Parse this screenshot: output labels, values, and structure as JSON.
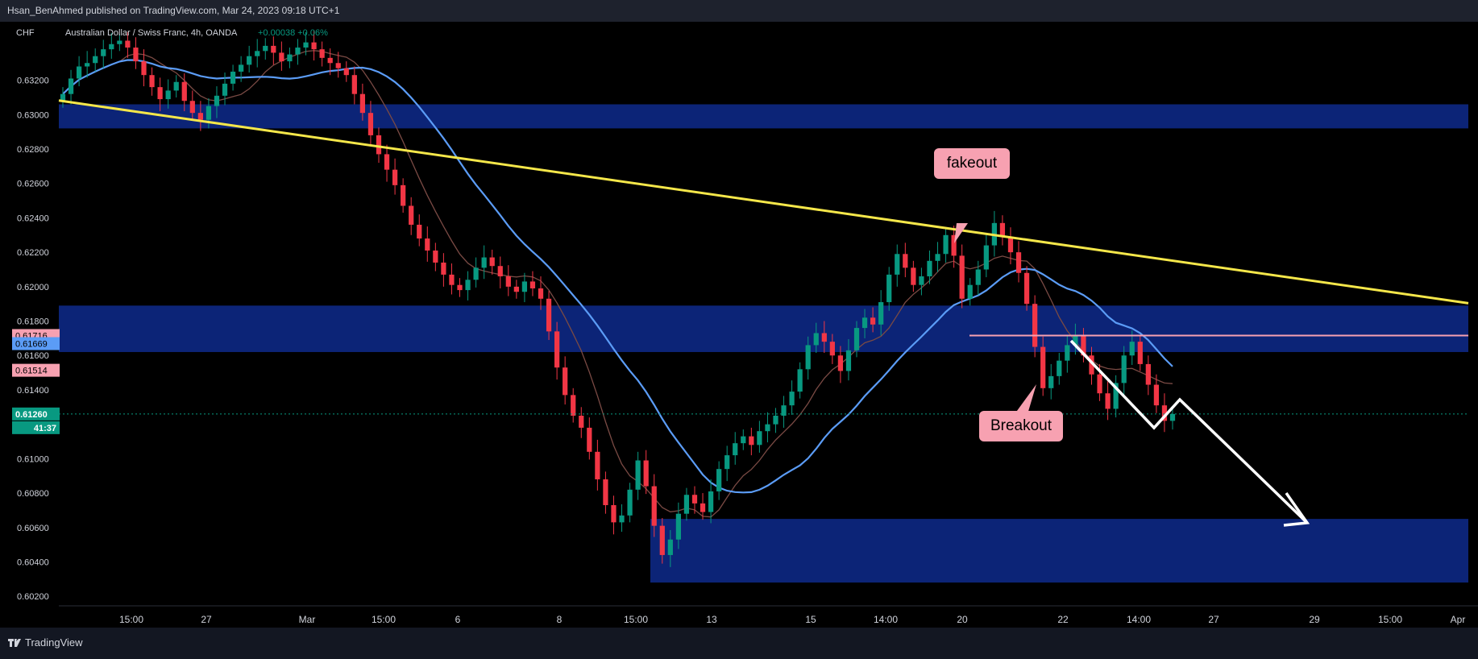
{
  "header": {
    "publish_text": "Hsan_BenAhmed published on TradingView.com, Mar 24, 2023 09:18 UTC+1"
  },
  "footer": {
    "brand": "TradingView"
  },
  "chart_data": {
    "type": "candlestick",
    "currency_label": "CHF",
    "symbol": "Australian Dollar / Swiss Franc, 4h, OANDA",
    "change_text": "+0.00038 +0.06%",
    "ylim": [
      0.6014,
      0.6354
    ],
    "y_ticks": [
      "0.63200",
      "0.63000",
      "0.62800",
      "0.62600",
      "0.62400",
      "0.62200",
      "0.62000",
      "0.61800",
      "0.61600",
      "0.61400",
      "0.61000",
      "0.60800",
      "0.60600",
      "0.60400",
      "0.60200"
    ],
    "x_ticks": [
      "15:00",
      "27",
      "Mar",
      "15:00",
      "6",
      "8",
      "15:00",
      "13",
      "15",
      "14:00",
      "20",
      "22",
      "14:00",
      "27",
      "29",
      "15:00",
      "Apr"
    ],
    "price_labels": [
      {
        "value": "0.61716",
        "color": "#f7a1b1",
        "text_color": "#000000",
        "price": 0.61716
      },
      {
        "value": "0.61669",
        "color": "#5b9cf6",
        "text_color": "#000000",
        "price": 0.61669
      },
      {
        "value": "0.61514",
        "color": "#f7a1b1",
        "text_color": "#000000",
        "price": 0.61514
      },
      {
        "value": "0.61260",
        "color": "#089981",
        "text_color": "#ffffff",
        "price": 0.6126
      },
      {
        "value": "41:37",
        "color": "#089981",
        "text_color": "#ffffff",
        "price": 0.6126
      }
    ],
    "zones": [
      {
        "price_top": 0.6306,
        "price_bottom": 0.6292
      },
      {
        "price_top": 0.6189,
        "price_bottom": 0.6162
      },
      {
        "price_top": 0.6065,
        "price_bottom": 0.6028
      }
    ],
    "closes": [
      0.6312,
      0.6321,
      0.6328,
      0.633,
      0.6334,
      0.6338,
      0.6341,
      0.6343,
      0.6339,
      0.6331,
      0.6323,
      0.6316,
      0.6309,
      0.6314,
      0.6319,
      0.6308,
      0.6301,
      0.6297,
      0.6305,
      0.6311,
      0.6318,
      0.6325,
      0.6329,
      0.6334,
      0.6337,
      0.634,
      0.6336,
      0.6331,
      0.6335,
      0.6339,
      0.6342,
      0.6338,
      0.6333,
      0.633,
      0.6327,
      0.6323,
      0.6312,
      0.6301,
      0.6288,
      0.6277,
      0.6268,
      0.6259,
      0.6247,
      0.6236,
      0.6228,
      0.6221,
      0.6214,
      0.6207,
      0.6201,
      0.6198,
      0.6204,
      0.6211,
      0.6217,
      0.6212,
      0.6206,
      0.62,
      0.6197,
      0.6203,
      0.6199,
      0.6193,
      0.6174,
      0.6153,
      0.6137,
      0.6125,
      0.6118,
      0.6104,
      0.6088,
      0.6073,
      0.6063,
      0.6067,
      0.6082,
      0.6099,
      0.6084,
      0.6061,
      0.6044,
      0.6053,
      0.6068,
      0.6079,
      0.6074,
      0.6069,
      0.6081,
      0.6094,
      0.6102,
      0.6109,
      0.6113,
      0.6108,
      0.6116,
      0.612,
      0.6125,
      0.6131,
      0.6139,
      0.6152,
      0.6166,
      0.6173,
      0.6168,
      0.616,
      0.6151,
      0.6163,
      0.6176,
      0.6182,
      0.6178,
      0.6191,
      0.6207,
      0.6219,
      0.6211,
      0.6201,
      0.6206,
      0.6215,
      0.6219,
      0.623,
      0.6218,
      0.6193,
      0.6201,
      0.621,
      0.6224,
      0.6237,
      0.6229,
      0.622,
      0.6208,
      0.619,
      0.6165,
      0.6141,
      0.6148,
      0.6157,
      0.6166,
      0.6172,
      0.616,
      0.6149,
      0.6138,
      0.6129,
      0.6144,
      0.616,
      0.6168,
      0.6155,
      0.6143,
      0.6131,
      0.6122,
      0.6126
    ],
    "annotations": [
      {
        "text": "fakeout",
        "fill": "#f7a1b1",
        "text_color": "#000000"
      },
      {
        "text": "Breakout",
        "fill": "#f7a1b1",
        "text_color": "#000000"
      }
    ],
    "trendline_color": "#f5e74a",
    "ma_fast_color": "#5b9cf6",
    "ma_slow_color": "#7a4a44",
    "zone_color": "#0c2477",
    "level_line": {
      "price": 0.61716,
      "color": "#f7a1b1"
    },
    "up_color": "#089981",
    "down_color": "#f23645"
  }
}
